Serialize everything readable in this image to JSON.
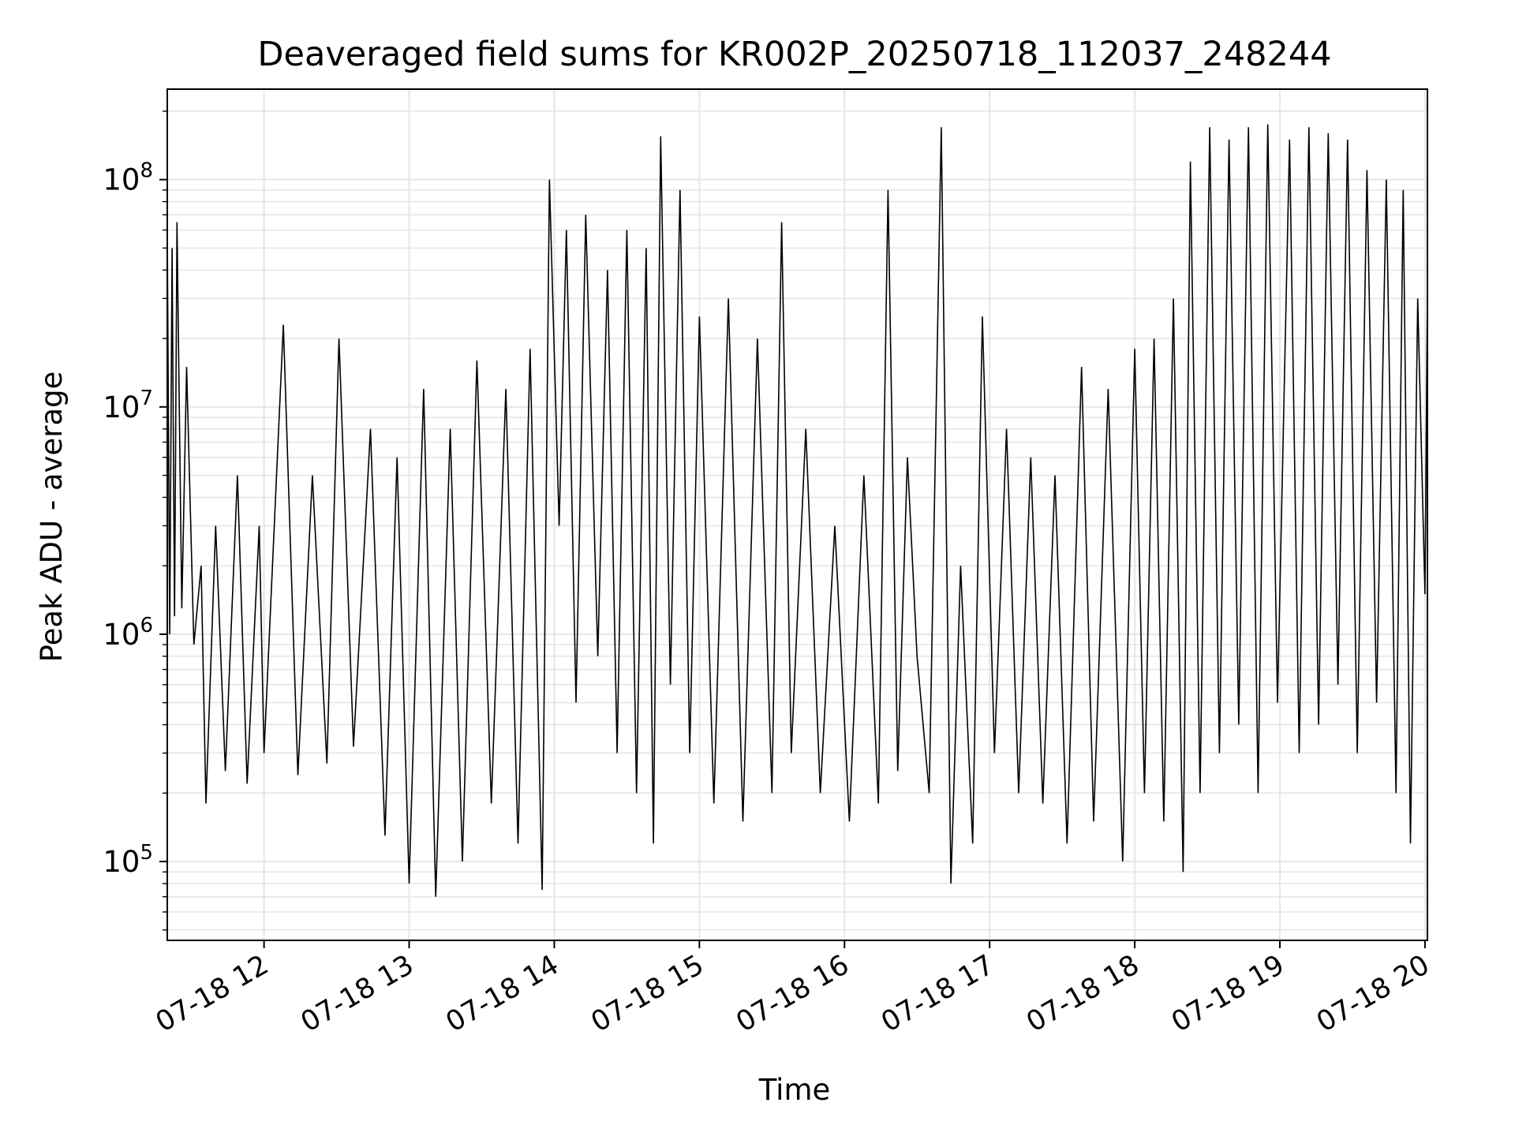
{
  "chart_data": {
    "type": "line",
    "title": "Deaveraged field sums for KR002P_20250718_112037_248244",
    "xlabel": "Time",
    "ylabel": "Peak ADU - average",
    "yscale": "log",
    "ylim": [
      45000,
      250000000
    ],
    "xlim": [
      "2025-07-18 11:20",
      "2025-07-18 20:01"
    ],
    "x_ticks": [
      "07-18 12",
      "07-18 13",
      "07-18 14",
      "07-18 15",
      "07-18 16",
      "07-18 17",
      "07-18 18",
      "07-18 19",
      "07-18 20"
    ],
    "y_ticks": [
      {
        "base": "10",
        "exp": "5"
      },
      {
        "base": "10",
        "exp": "6"
      },
      {
        "base": "10",
        "exp": "7"
      },
      {
        "base": "10",
        "exp": "8"
      }
    ],
    "grid": true,
    "line_color": "#000000",
    "series": [
      {
        "values": [
          [
            "2025-07-18 11:20",
            60000000
          ],
          [
            "2025-07-18 11:21",
            1000000
          ],
          [
            "2025-07-18 11:22",
            50000000
          ],
          [
            "2025-07-18 11:23",
            1200000
          ],
          [
            "2025-07-18 11:24",
            65000000
          ],
          [
            "2025-07-18 11:26",
            1300000
          ],
          [
            "2025-07-18 11:28",
            15000000
          ],
          [
            "2025-07-18 11:31",
            900000
          ],
          [
            "2025-07-18 11:34",
            2000000
          ],
          [
            "2025-07-18 11:36",
            180000
          ],
          [
            "2025-07-18 11:40",
            3000000
          ],
          [
            "2025-07-18 11:44",
            250000
          ],
          [
            "2025-07-18 11:49",
            5000000
          ],
          [
            "2025-07-18 11:53",
            220000
          ],
          [
            "2025-07-18 11:58",
            3000000
          ],
          [
            "2025-07-18 12:00",
            300000
          ],
          [
            "2025-07-18 12:08",
            23000000
          ],
          [
            "2025-07-18 12:14",
            240000
          ],
          [
            "2025-07-18 12:20",
            5000000
          ],
          [
            "2025-07-18 12:26",
            270000
          ],
          [
            "2025-07-18 12:31",
            20000000
          ],
          [
            "2025-07-18 12:37",
            320000
          ],
          [
            "2025-07-18 12:44",
            8000000
          ],
          [
            "2025-07-18 12:50",
            130000
          ],
          [
            "2025-07-18 12:55",
            6000000
          ],
          [
            "2025-07-18 13:00",
            80000
          ],
          [
            "2025-07-18 13:06",
            12000000
          ],
          [
            "2025-07-18 13:11",
            70000
          ],
          [
            "2025-07-18 13:17",
            8000000
          ],
          [
            "2025-07-18 13:22",
            100000
          ],
          [
            "2025-07-18 13:28",
            16000000
          ],
          [
            "2025-07-18 13:34",
            180000
          ],
          [
            "2025-07-18 13:40",
            12000000
          ],
          [
            "2025-07-18 13:45",
            120000
          ],
          [
            "2025-07-18 13:50",
            18000000
          ],
          [
            "2025-07-18 13:55",
            75000
          ],
          [
            "2025-07-18 13:58",
            100000000
          ],
          [
            "2025-07-18 14:02",
            3000000
          ],
          [
            "2025-07-18 14:05",
            60000000
          ],
          [
            "2025-07-18 14:09",
            500000
          ],
          [
            "2025-07-18 14:13",
            70000000
          ],
          [
            "2025-07-18 14:18",
            800000
          ],
          [
            "2025-07-18 14:22",
            40000000
          ],
          [
            "2025-07-18 14:26",
            300000
          ],
          [
            "2025-07-18 14:30",
            60000000
          ],
          [
            "2025-07-18 14:34",
            200000
          ],
          [
            "2025-07-18 14:38",
            50000000
          ],
          [
            "2025-07-18 14:41",
            120000
          ],
          [
            "2025-07-18 14:44",
            155000000
          ],
          [
            "2025-07-18 14:48",
            600000
          ],
          [
            "2025-07-18 14:52",
            90000000
          ],
          [
            "2025-07-18 14:56",
            300000
          ],
          [
            "2025-07-18 15:00",
            25000000
          ],
          [
            "2025-07-18 15:06",
            180000
          ],
          [
            "2025-07-18 15:12",
            30000000
          ],
          [
            "2025-07-18 15:18",
            150000
          ],
          [
            "2025-07-18 15:24",
            20000000
          ],
          [
            "2025-07-18 15:30",
            200000
          ],
          [
            "2025-07-18 15:34",
            65000000
          ],
          [
            "2025-07-18 15:38",
            300000
          ],
          [
            "2025-07-18 15:44",
            8000000
          ],
          [
            "2025-07-18 15:50",
            200000
          ],
          [
            "2025-07-18 15:56",
            3000000
          ],
          [
            "2025-07-18 16:02",
            150000
          ],
          [
            "2025-07-18 16:08",
            5000000
          ],
          [
            "2025-07-18 16:14",
            180000
          ],
          [
            "2025-07-18 16:18",
            90000000
          ],
          [
            "2025-07-18 16:22",
            250000
          ],
          [
            "2025-07-18 16:26",
            6000000
          ],
          [
            "2025-07-18 16:30",
            800000
          ],
          [
            "2025-07-18 16:35",
            200000
          ],
          [
            "2025-07-18 16:40",
            170000000
          ],
          [
            "2025-07-18 16:44",
            80000
          ],
          [
            "2025-07-18 16:48",
            2000000
          ],
          [
            "2025-07-18 16:53",
            120000
          ],
          [
            "2025-07-18 16:57",
            25000000
          ],
          [
            "2025-07-18 17:02",
            300000
          ],
          [
            "2025-07-18 17:07",
            8000000
          ],
          [
            "2025-07-18 17:12",
            200000
          ],
          [
            "2025-07-18 17:17",
            6000000
          ],
          [
            "2025-07-18 17:22",
            180000
          ],
          [
            "2025-07-18 17:27",
            5000000
          ],
          [
            "2025-07-18 17:32",
            120000
          ],
          [
            "2025-07-18 17:38",
            15000000
          ],
          [
            "2025-07-18 17:43",
            150000
          ],
          [
            "2025-07-18 17:49",
            12000000
          ],
          [
            "2025-07-18 17:55",
            100000
          ],
          [
            "2025-07-18 18:00",
            18000000
          ],
          [
            "2025-07-18 18:04",
            200000
          ],
          [
            "2025-07-18 18:08",
            20000000
          ],
          [
            "2025-07-18 18:12",
            150000
          ],
          [
            "2025-07-18 18:16",
            30000000
          ],
          [
            "2025-07-18 18:20",
            90000
          ],
          [
            "2025-07-18 18:23",
            120000000
          ],
          [
            "2025-07-18 18:27",
            200000
          ],
          [
            "2025-07-18 18:31",
            170000000
          ],
          [
            "2025-07-18 18:35",
            300000
          ],
          [
            "2025-07-18 18:39",
            150000000
          ],
          [
            "2025-07-18 18:43",
            400000
          ],
          [
            "2025-07-18 18:47",
            170000000
          ],
          [
            "2025-07-18 18:51",
            200000
          ],
          [
            "2025-07-18 18:55",
            175000000
          ],
          [
            "2025-07-18 18:59",
            500000
          ],
          [
            "2025-07-18 19:04",
            150000000
          ],
          [
            "2025-07-18 19:08",
            300000
          ],
          [
            "2025-07-18 19:12",
            170000000
          ],
          [
            "2025-07-18 19:16",
            400000
          ],
          [
            "2025-07-18 19:20",
            160000000
          ],
          [
            "2025-07-18 19:24",
            600000
          ],
          [
            "2025-07-18 19:28",
            150000000
          ],
          [
            "2025-07-18 19:32",
            300000
          ],
          [
            "2025-07-18 19:36",
            110000000
          ],
          [
            "2025-07-18 19:40",
            500000
          ],
          [
            "2025-07-18 19:44",
            100000000
          ],
          [
            "2025-07-18 19:48",
            200000
          ],
          [
            "2025-07-18 19:51",
            90000000
          ],
          [
            "2025-07-18 19:54",
            120000
          ],
          [
            "2025-07-18 19:57",
            30000000
          ],
          [
            "2025-07-18 20:00",
            1500000
          ],
          [
            "2025-07-18 20:01",
            33000000
          ]
        ]
      }
    ]
  }
}
